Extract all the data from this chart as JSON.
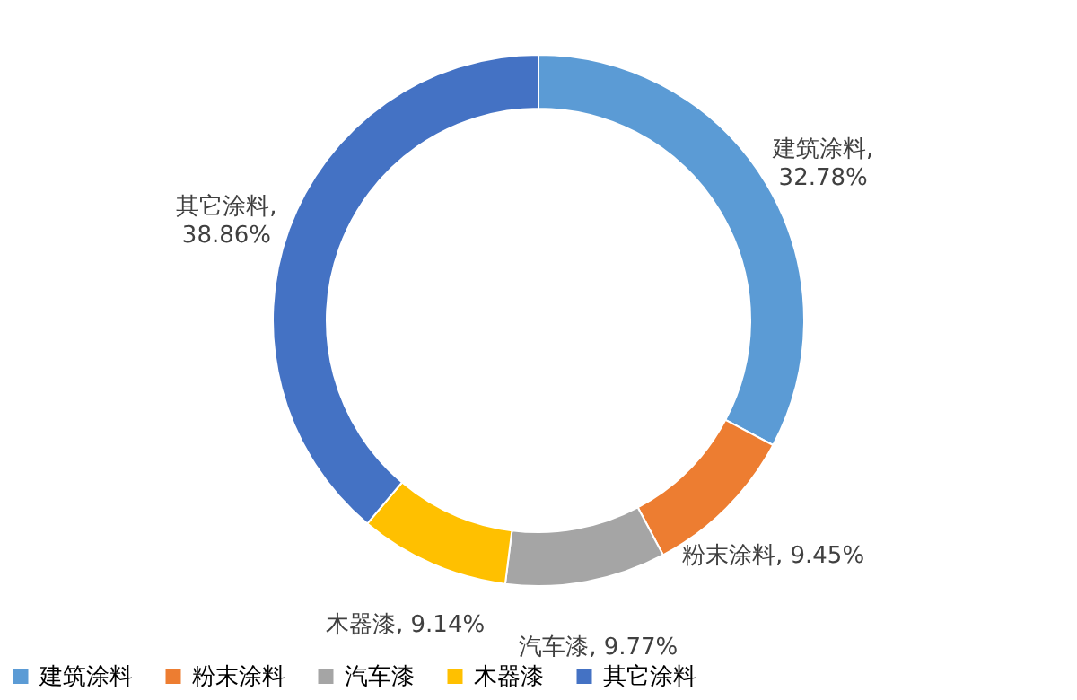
{
  "chart_data": {
    "type": "donut",
    "categories": [
      "建筑涂料",
      "粉末涂料",
      "汽车漆",
      "木器漆",
      "其它涂料"
    ],
    "values": [
      32.78,
      9.45,
      9.77,
      9.14,
      38.86
    ],
    "colors": [
      "#5b9bd5",
      "#ed7d31",
      "#a5a5a5",
      "#ffc000",
      "#4472c4"
    ],
    "value_labels": [
      "建筑涂料,\n32.78%",
      "粉末涂料, 9.45%",
      "汽车漆, 9.77%",
      "木器漆, 9.14%",
      "其它涂料,\n38.86%"
    ],
    "legend": "bottom"
  }
}
